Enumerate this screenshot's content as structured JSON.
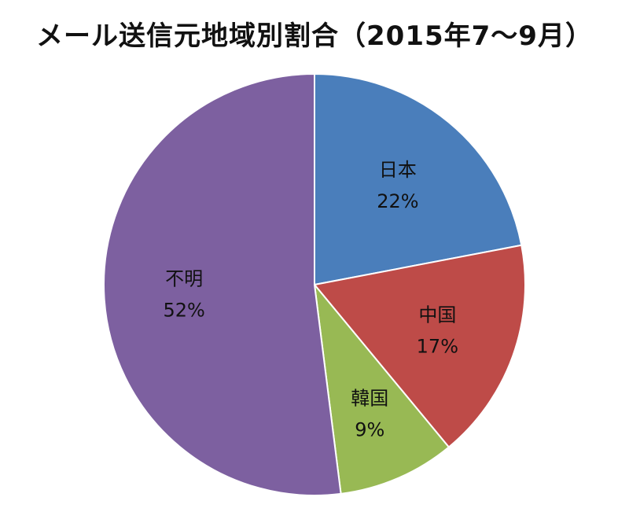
{
  "chart_data": {
    "type": "pie",
    "title": "メール送信元地域別割合（2015年7～9月）",
    "slices": [
      {
        "label": "日本",
        "value": 22,
        "value_label": "22%",
        "color": "#4a7ebb"
      },
      {
        "label": "中国",
        "value": 17,
        "value_label": "17%",
        "color": "#be4b48"
      },
      {
        "label": "韓国",
        "value": 9,
        "value_label": "9%",
        "color": "#98b954"
      },
      {
        "label": "不明",
        "value": 52,
        "value_label": "52%",
        "color": "#7d60a0"
      }
    ]
  }
}
